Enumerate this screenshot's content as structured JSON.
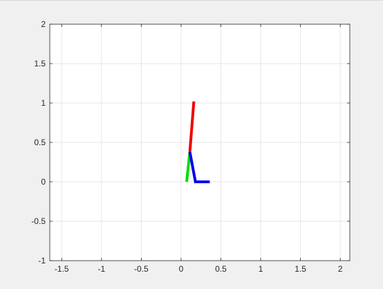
{
  "chart_data": {
    "type": "line",
    "title": "",
    "xlabel": "",
    "ylabel": "",
    "xlim": [
      -1.65,
      2.12
    ],
    "ylim": [
      -1,
      2
    ],
    "grid": true,
    "box": true,
    "x_ticks": [
      -1.5,
      -1,
      -0.5,
      0,
      0.5,
      1,
      1.5,
      2
    ],
    "x_tick_labels": [
      "-1.5",
      "-1",
      "-0.5",
      "0",
      "0.5",
      "1",
      "1.5",
      "2"
    ],
    "y_ticks": [
      2,
      1.5,
      1,
      0.5,
      0,
      -0.5,
      -1
    ],
    "y_tick_labels": [
      "2",
      "1.5",
      "1",
      "0.5",
      "0",
      "-0.5",
      "-1"
    ],
    "series": [
      {
        "color": "#00dd00",
        "x": [
          0.07,
          0.11
        ],
        "y": [
          0,
          0.38
        ]
      },
      {
        "color": "#0000ee",
        "x": [
          0.11,
          0.18,
          0.36
        ],
        "y": [
          0.38,
          0,
          0
        ]
      },
      {
        "color": "#ee0000",
        "x": [
          0.11,
          0.16
        ],
        "y": [
          0.38,
          1.02
        ]
      }
    ]
  }
}
